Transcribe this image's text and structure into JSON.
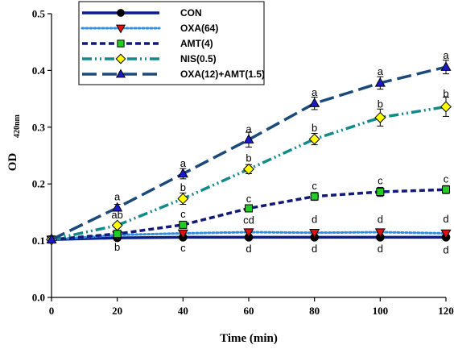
{
  "chart_data": {
    "type": "line",
    "xlabel": "Time (min)",
    "ylabel": "OD",
    "ylabel_subscript": "420nm",
    "xlim": [
      0,
      120
    ],
    "ylim": [
      0.0,
      0.5
    ],
    "x_ticks": [
      0,
      20,
      40,
      60,
      80,
      100,
      120
    ],
    "y_ticks": [
      0.0,
      0.1,
      0.2,
      0.3,
      0.4,
      0.5
    ],
    "y_tick_labels": [
      "0.0",
      "0.1",
      "0.2",
      "0.3",
      "0.4",
      "0.5"
    ],
    "grid": false,
    "legend_position": "top-left",
    "x": [
      0,
      20,
      40,
      60,
      80,
      100,
      120
    ],
    "series": [
      {
        "name": "CON",
        "color": "#0a1f8f",
        "marker": "circle",
        "marker_fill": "#000000",
        "dash": "solid",
        "values": [
          0.102,
          0.105,
          0.106,
          0.106,
          0.106,
          0.106,
          0.106
        ],
        "errors": [
          0,
          0,
          0,
          0,
          0,
          0,
          0
        ]
      },
      {
        "name": "OXA(64)",
        "color": "#2f8fe0",
        "marker": "triangle-down",
        "marker_fill": "#e01010",
        "dash": "dotted",
        "values": [
          0.102,
          0.11,
          0.113,
          0.115,
          0.114,
          0.115,
          0.113
        ],
        "errors": [
          0,
          0,
          0,
          0.005,
          0.005,
          0.005,
          0.004
        ]
      },
      {
        "name": "AMT(4)",
        "color": "#111a7a",
        "marker": "square",
        "marker_fill": "#22cc22",
        "dash": "dashed",
        "values": [
          0.102,
          0.112,
          0.128,
          0.157,
          0.178,
          0.186,
          0.19
        ],
        "errors": [
          0,
          0,
          0.006,
          0.005,
          0.007,
          0.008,
          0.007
        ]
      },
      {
        "name": "NIS(0.5)",
        "color": "#138a8a",
        "marker": "diamond",
        "marker_fill": "#ffff00",
        "dash": "dash-dot-dot",
        "values": [
          0.102,
          0.127,
          0.174,
          0.226,
          0.279,
          0.317,
          0.336
        ],
        "errors": [
          0,
          0.004,
          0.01,
          0.008,
          0.01,
          0.015,
          0.017
        ]
      },
      {
        "name": "OXA(12)+AMT(1.5)",
        "color": "#1a4a7a",
        "marker": "triangle-up",
        "marker_fill": "#1a1acc",
        "dash": "long-dash",
        "values": [
          0.102,
          0.158,
          0.218,
          0.278,
          0.342,
          0.378,
          0.406
        ],
        "errors": [
          0,
          0.006,
          0.009,
          0.013,
          0.011,
          0.011,
          0.012
        ]
      }
    ],
    "annotations": [
      {
        "x": 20,
        "y": 0.177,
        "text": "a"
      },
      {
        "x": 20,
        "y": 0.145,
        "text": "ab"
      },
      {
        "x": 20,
        "y": 0.088,
        "text": "b"
      },
      {
        "x": 40,
        "y": 0.236,
        "text": "a"
      },
      {
        "x": 40,
        "y": 0.193,
        "text": "b"
      },
      {
        "x": 40,
        "y": 0.146,
        "text": "c"
      },
      {
        "x": 40,
        "y": 0.087,
        "text": "c"
      },
      {
        "x": 60,
        "y": 0.296,
        "text": "a"
      },
      {
        "x": 60,
        "y": 0.245,
        "text": "b"
      },
      {
        "x": 60,
        "y": 0.173,
        "text": "c"
      },
      {
        "x": 60,
        "y": 0.136,
        "text": "cd"
      },
      {
        "x": 60,
        "y": 0.085,
        "text": "d"
      },
      {
        "x": 80,
        "y": 0.361,
        "text": "a"
      },
      {
        "x": 80,
        "y": 0.298,
        "text": "b"
      },
      {
        "x": 80,
        "y": 0.196,
        "text": "c"
      },
      {
        "x": 80,
        "y": 0.137,
        "text": "d"
      },
      {
        "x": 80,
        "y": 0.085,
        "text": "d"
      },
      {
        "x": 100,
        "y": 0.398,
        "text": "a"
      },
      {
        "x": 100,
        "y": 0.34,
        "text": "b"
      },
      {
        "x": 100,
        "y": 0.205,
        "text": "c"
      },
      {
        "x": 100,
        "y": 0.137,
        "text": "d"
      },
      {
        "x": 100,
        "y": 0.085,
        "text": "d"
      },
      {
        "x": 120,
        "y": 0.426,
        "text": "a"
      },
      {
        "x": 120,
        "y": 0.359,
        "text": "b"
      },
      {
        "x": 120,
        "y": 0.208,
        "text": "c"
      },
      {
        "x": 120,
        "y": 0.138,
        "text": "d"
      },
      {
        "x": 120,
        "y": 0.083,
        "text": "d"
      }
    ]
  }
}
